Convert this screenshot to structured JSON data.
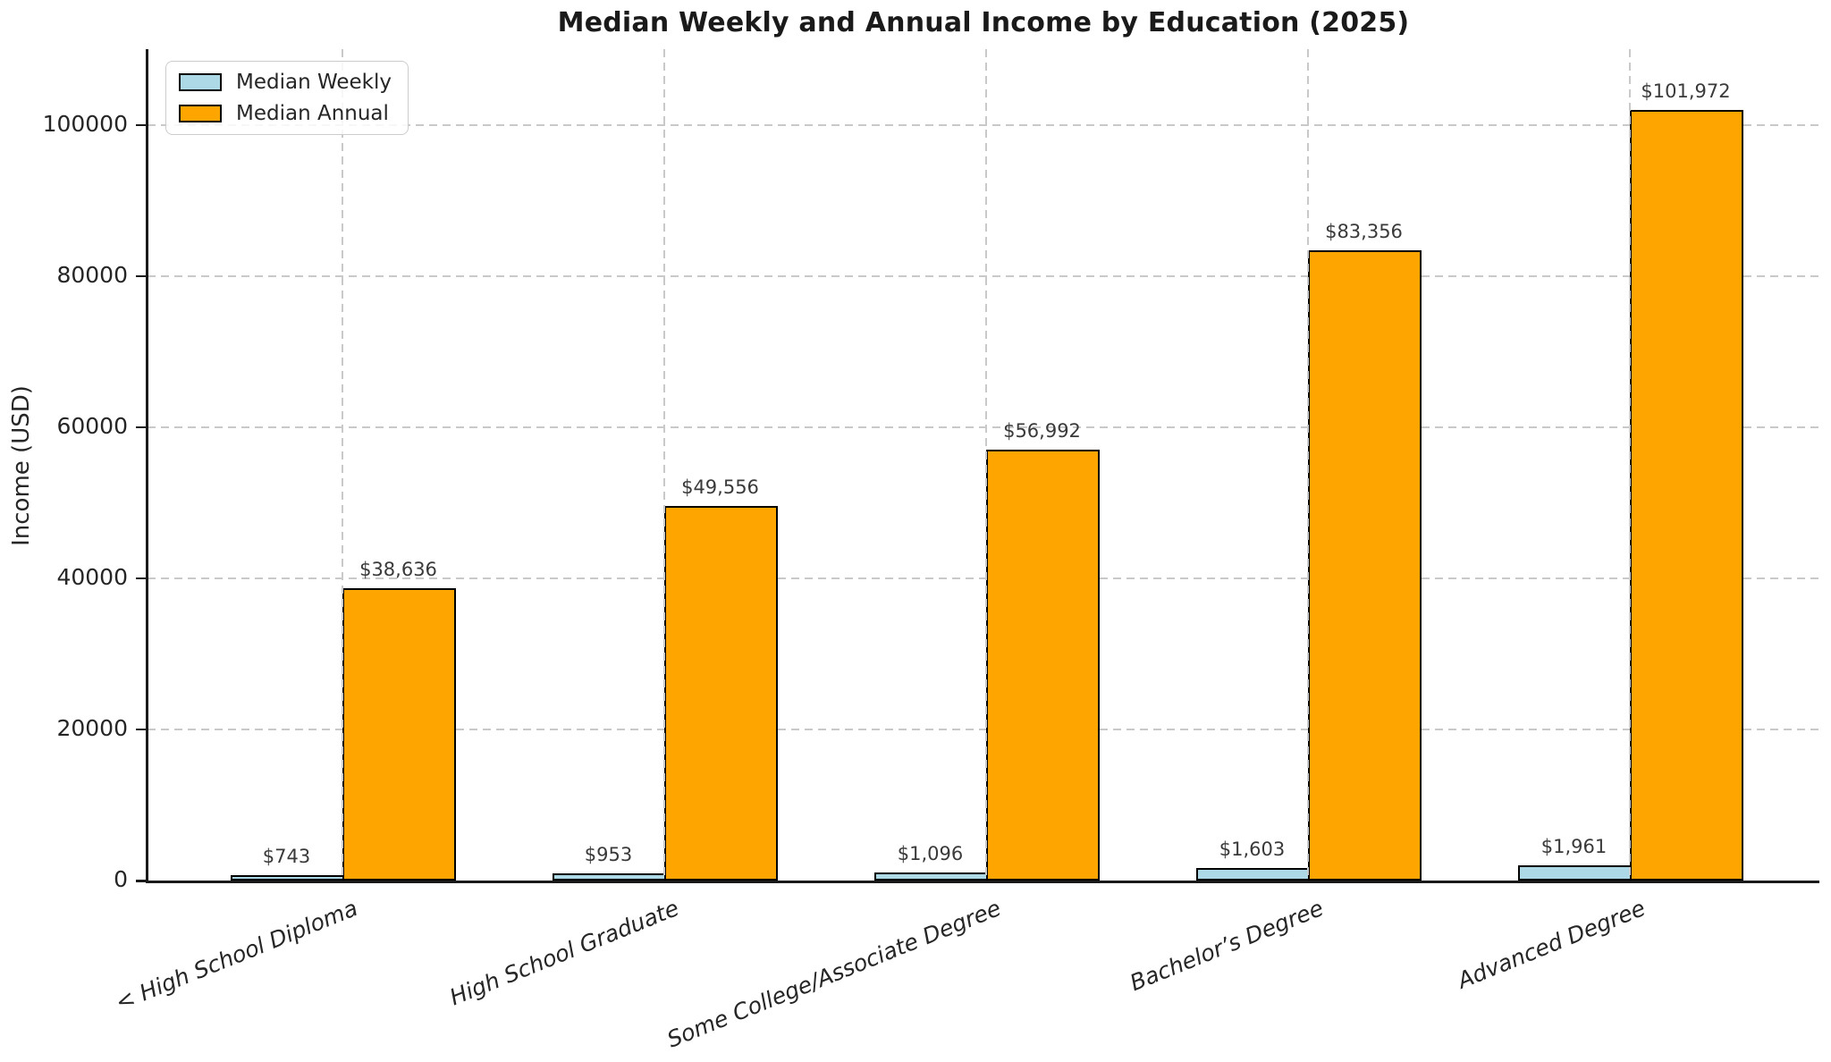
{
  "chart_data": {
    "type": "bar",
    "title": "Median Weekly and Annual Income by Education (2025)",
    "ylabel": "Income (USD)",
    "xlabel": "",
    "categories": [
      "< High School Diploma",
      "High School Graduate",
      "Some College/Associate Degree",
      "Bachelor’s Degree",
      "Advanced Degree"
    ],
    "series": [
      {
        "name": "Median Weekly",
        "color": "#ADD8E6",
        "values": [
          743,
          953,
          1096,
          1603,
          1961
        ],
        "labels": [
          "$743",
          "$953",
          "$1,096",
          "$1,603",
          "$1,961"
        ]
      },
      {
        "name": "Median Annual",
        "color": "#FFA500",
        "values": [
          38636,
          49556,
          56992,
          83356,
          101972
        ],
        "labels": [
          "$38,636",
          "$49,556",
          "$56,992",
          "$83,356",
          "$101,972"
        ]
      }
    ],
    "yticks": [
      0,
      20000,
      40000,
      60000,
      80000,
      100000
    ],
    "ytick_labels": [
      "0",
      "20000",
      "40000",
      "60000",
      "80000",
      "100000"
    ],
    "ylim": [
      0,
      110000
    ],
    "grid": "dashed",
    "grid_color": "#c9c9c9",
    "bar_edge_color": "#000000",
    "legend_position": "upper-left"
  }
}
